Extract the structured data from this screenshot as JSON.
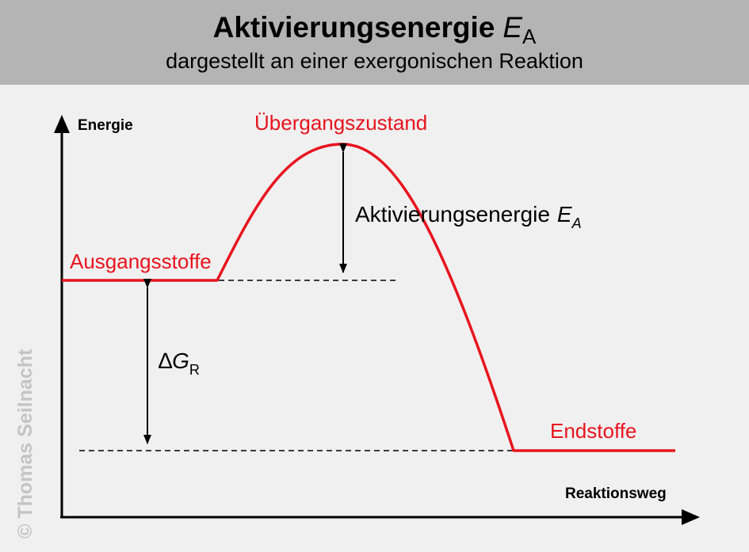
{
  "header": {
    "title_main": "Aktivierungsenergie",
    "title_symbol": "E",
    "title_symbol_sub": "A",
    "subtitle": "dargestellt an einer exergonischen Reaktion"
  },
  "axes": {
    "y_label": "Energie",
    "x_label": "Reaktionsweg"
  },
  "labels": {
    "transition_state": "Übergangszustand",
    "reactants": "Ausgangsstoffe",
    "products": "Endstoffe",
    "activation_text": "Aktivierungsenergie",
    "activation_symbol": "E",
    "activation_sub": "A",
    "delta_symbol": "∆",
    "delta_var": "G",
    "delta_sub": "R"
  },
  "colors": {
    "curve": "#e8141e",
    "header_bg": "#b4b4b4",
    "background": "#f0f0f0",
    "axis": "#000000"
  },
  "copyright": "© Thomas Seilnacht"
}
